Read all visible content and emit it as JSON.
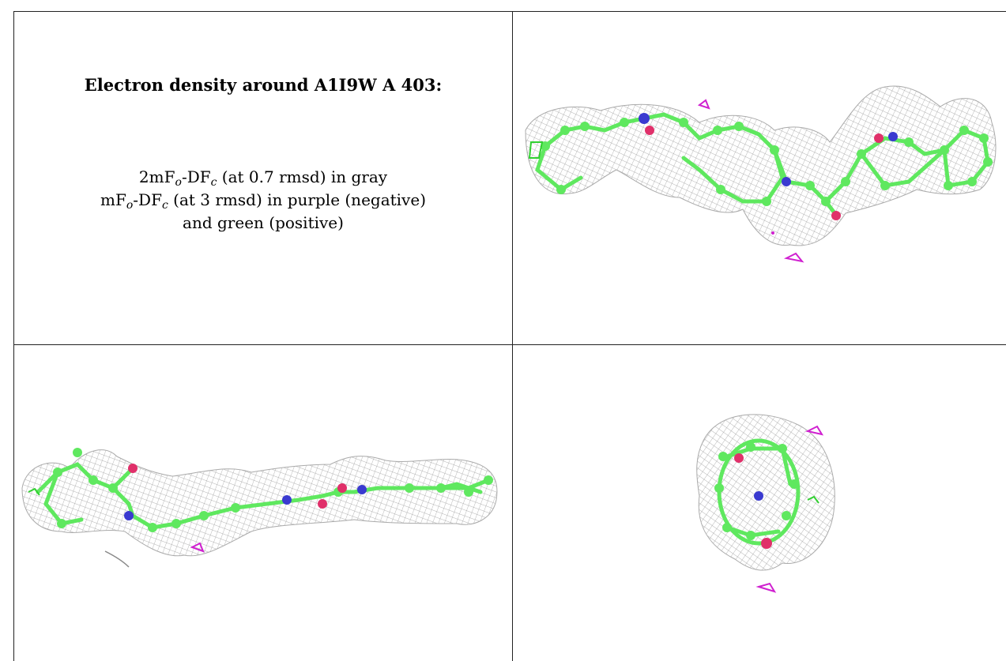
{
  "legend_panel": {
    "title": "Electron density around A1I9W A 403:",
    "line1": {
      "prefix": "2mF",
      "sub1": "o",
      "mid": "-DF",
      "sub2": "c",
      "suffix": " (at 0.7 rmsd) in gray"
    },
    "line2": {
      "prefix": "mF",
      "sub1": "o",
      "mid": "-DF",
      "sub2": "c",
      "suffix": " (at 3 rmsd) in purple (negative)"
    },
    "line3": "and green (positive)"
  },
  "colors": {
    "mesh": "#9a9a9a",
    "carbon": "#5fe85f",
    "nitrogen": "#3a3ad0",
    "oxygen": "#e0306a",
    "negative_density": "#d020d0",
    "positive_density": "#30d030"
  }
}
